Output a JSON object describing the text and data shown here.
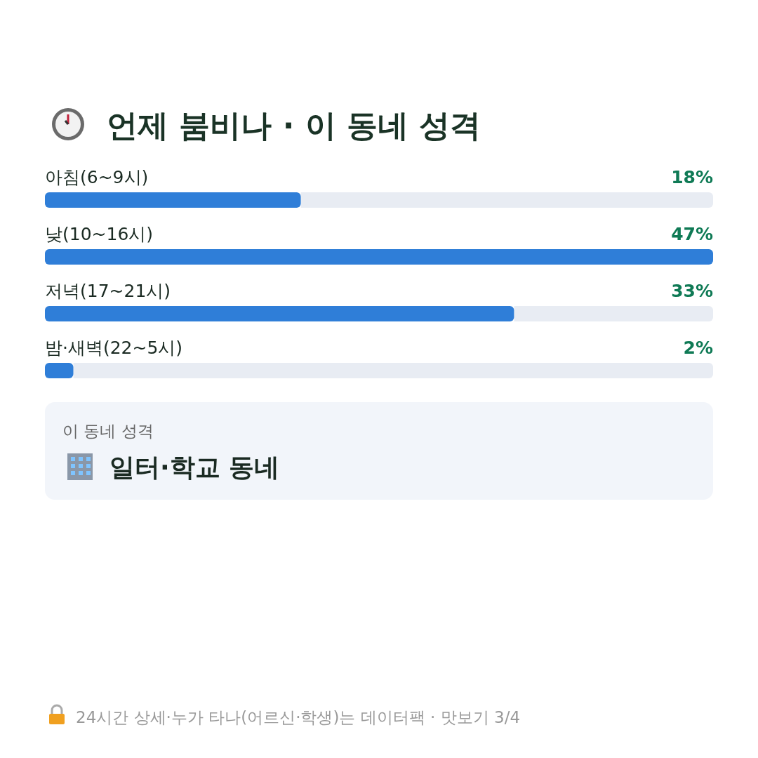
{
  "chart_data": {
    "type": "bar",
    "orientation": "horizontal",
    "title": "언제 붐비나 · 이 동네 성격",
    "categories": [
      "아침(6~9시)",
      "낮(10~16시)",
      "저녁(17~21시)",
      "밤·새벽(22~5시)"
    ],
    "values": [
      18,
      47,
      33,
      2
    ],
    "value_labels": [
      "18%",
      "47%",
      "33%",
      "2%"
    ],
    "color": "#2f7ed8",
    "annotations": [
      "이 동네 성격",
      "일터·학교 동네",
      "24시간 상세·누가 타나(어르신·학생)는 데이터팩 · 맛보기 3/4"
    ]
  }
}
